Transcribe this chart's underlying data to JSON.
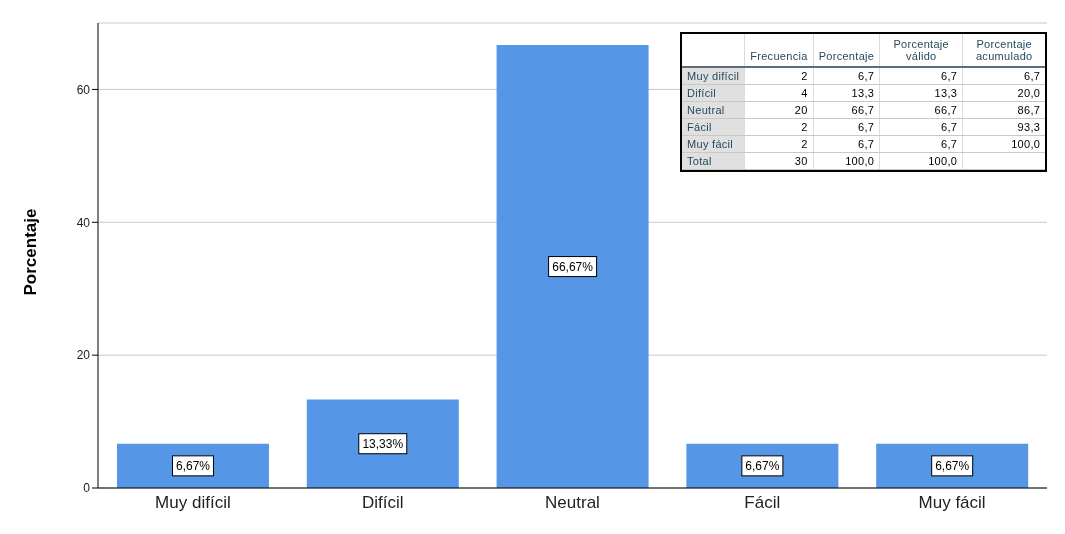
{
  "chart_data": [
    {
      "type": "bar",
      "ylabel": "Porcentaje",
      "categories": [
        "Muy difícil",
        "Difícil",
        "Neutral",
        "Fácil",
        "Muy fácil"
      ],
      "values": [
        6.67,
        13.33,
        66.67,
        6.67,
        6.67
      ],
      "value_labels": [
        "6,67%",
        "13,33%",
        "66,67%",
        "6,67%",
        "6,67%"
      ],
      "color": "#5596e6",
      "ylim": [
        0,
        70
      ],
      "yticks": [
        0,
        20,
        40,
        60
      ],
      "grid": "y"
    },
    {
      "type": "other",
      "categories": [
        "Muy difícil",
        "Difícil",
        "Neutral",
        "Fácil",
        "Muy fácil",
        "Total"
      ],
      "series": [
        {
          "name": "Frecuencia",
          "values": [
            2,
            4,
            20,
            2,
            2,
            30
          ],
          "value_labels": [
            "2",
            "4",
            "20",
            "2",
            "2",
            "30"
          ]
        },
        {
          "name": "Porcentaje",
          "values": [
            6.7,
            13.3,
            66.7,
            6.7,
            6.7,
            100.0
          ],
          "value_labels": [
            "6,7",
            "13,3",
            "66,7",
            "6,7",
            "6,7",
            "100,0"
          ]
        },
        {
          "name": "Porcentaje válido",
          "values": [
            6.7,
            13.3,
            66.7,
            6.7,
            6.7,
            100.0
          ],
          "value_labels": [
            "6,7",
            "13,3",
            "66,7",
            "6,7",
            "6,7",
            "100,0"
          ]
        },
        {
          "name": "Porcentaje acumulado",
          "values": [
            6.7,
            20.0,
            86.7,
            93.3,
            100.0,
            null
          ],
          "value_labels": [
            "6,7",
            "20,0",
            "86,7",
            "93,3",
            "100,0",
            null
          ]
        }
      ]
    }
  ]
}
